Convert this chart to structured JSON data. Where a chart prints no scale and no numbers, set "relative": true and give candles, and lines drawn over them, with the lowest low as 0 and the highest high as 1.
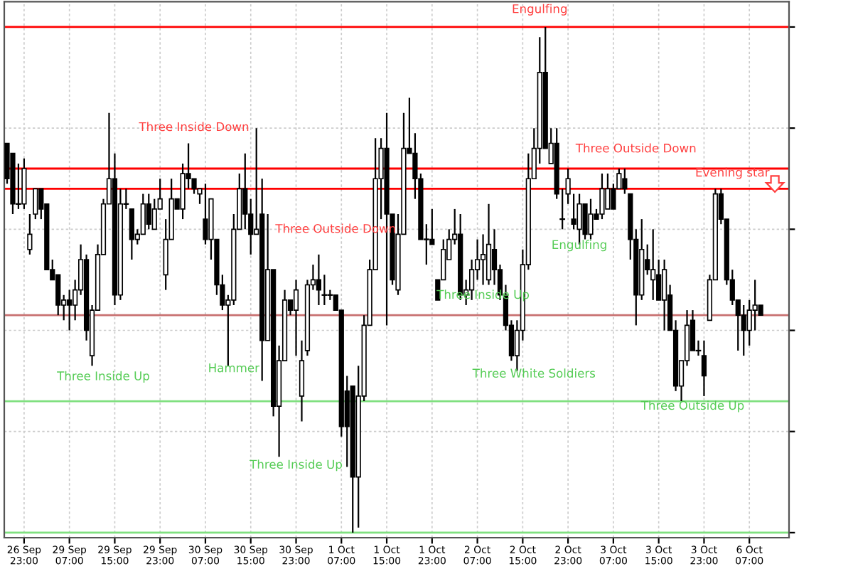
{
  "chart_data": {
    "type": "candlestick",
    "relative": true,
    "tick_labels": "x",
    "grid": true,
    "categories": [
      null,
      null,
      null,
      "26 Sep 23:00",
      null,
      null,
      null,
      null,
      null,
      null,
      null,
      "29 Sep 07:00",
      null,
      null,
      null,
      null,
      null,
      null,
      null,
      "29 Sep 15:00",
      null,
      null,
      null,
      null,
      null,
      null,
      null,
      "29 Sep 23:00",
      null,
      null,
      null,
      null,
      null,
      null,
      null,
      "30 Sep 07:00",
      null,
      null,
      null,
      null,
      null,
      null,
      null,
      "30 Sep 15:00",
      null,
      null,
      null,
      null,
      null,
      null,
      null,
      "30 Sep 23:00",
      null,
      null,
      null,
      null,
      null,
      null,
      null,
      "1 Oct 07:00",
      null,
      null,
      null,
      null,
      null,
      null,
      null,
      "1 Oct 15:00",
      null,
      null,
      null,
      null,
      null,
      null,
      null,
      "1 Oct 23:00",
      null,
      null,
      null,
      null,
      null,
      null,
      null,
      "2 Oct 07:00",
      null,
      null,
      null,
      null,
      null,
      null,
      null,
      "2 Oct 15:00",
      null,
      null,
      null,
      null,
      null,
      null,
      null,
      "2 Oct 23:00",
      null,
      null,
      null,
      null,
      null,
      null,
      null,
      "3 Oct 07:00",
      null,
      null,
      null,
      null,
      null,
      null,
      null,
      "3 Oct 15:00",
      null,
      null,
      null,
      null,
      null,
      null,
      null,
      "3 Oct 23:00",
      null,
      null,
      null,
      null,
      null,
      null,
      null,
      "6 Oct 07:00",
      null,
      null
    ],
    "ohlc": [
      [
        0.77,
        0.77,
        0.69,
        0.7
      ],
      [
        0.75,
        0.75,
        0.63,
        0.65
      ],
      [
        0.65,
        0.73,
        0.64,
        0.65
      ],
      [
        0.65,
        0.74,
        0.64,
        0.72
      ],
      [
        0.56,
        0.63,
        0.55,
        0.59
      ],
      [
        0.63,
        0.68,
        0.62,
        0.68
      ],
      [
        0.68,
        0.68,
        0.62,
        0.64
      ],
      [
        0.65,
        0.65,
        0.52,
        0.52
      ],
      [
        0.52,
        0.54,
        0.5,
        0.5
      ],
      [
        0.51,
        0.51,
        0.43,
        0.45
      ],
      [
        0.45,
        0.47,
        0.42,
        0.46
      ],
      [
        0.46,
        0.48,
        0.4,
        0.45
      ],
      [
        0.45,
        0.5,
        0.42,
        0.48
      ],
      [
        0.48,
        0.57,
        0.47,
        0.54
      ],
      [
        0.54,
        0.55,
        0.38,
        0.4
      ],
      [
        0.35,
        0.45,
        0.33,
        0.44
      ],
      [
        0.44,
        0.57,
        0.44,
        0.55
      ],
      [
        0.55,
        0.66,
        0.55,
        0.65
      ],
      [
        0.65,
        0.83,
        0.65,
        0.7
      ],
      [
        0.7,
        0.75,
        0.45,
        0.47
      ],
      [
        0.47,
        0.68,
        0.46,
        0.65
      ],
      [
        0.65,
        0.68,
        0.64,
        0.65
      ],
      [
        0.64,
        0.64,
        0.54,
        0.58
      ],
      [
        0.58,
        0.6,
        0.57,
        0.59
      ],
      [
        0.59,
        0.67,
        0.59,
        0.65
      ],
      [
        0.65,
        0.67,
        0.6,
        0.61
      ],
      [
        0.6,
        0.66,
        0.6,
        0.64
      ],
      [
        0.64,
        0.7,
        0.64,
        0.66
      ],
      [
        0.51,
        0.62,
        0.48,
        0.58
      ],
      [
        0.58,
        0.7,
        0.58,
        0.66
      ],
      [
        0.66,
        0.66,
        0.64,
        0.64
      ],
      [
        0.64,
        0.73,
        0.62,
        0.71
      ],
      [
        0.71,
        0.77,
        0.68,
        0.7
      ],
      [
        0.7,
        0.7,
        0.67,
        0.68
      ],
      [
        0.67,
        0.68,
        0.65,
        0.68
      ],
      [
        0.62,
        0.69,
        0.57,
        0.58
      ],
      [
        0.58,
        0.66,
        0.54,
        0.66
      ],
      [
        0.58,
        0.58,
        0.47,
        0.49
      ],
      [
        0.49,
        0.51,
        0.44,
        0.45
      ],
      [
        0.45,
        0.47,
        0.33,
        0.46
      ],
      [
        0.46,
        0.63,
        0.45,
        0.6
      ],
      [
        0.6,
        0.71,
        0.6,
        0.68
      ],
      [
        0.68,
        0.75,
        0.6,
        0.63
      ],
      [
        0.63,
        0.66,
        0.55,
        0.59
      ],
      [
        0.59,
        0.8,
        0.59,
        0.6
      ],
      [
        0.63,
        0.7,
        0.3,
        0.38
      ],
      [
        0.38,
        0.63,
        0.38,
        0.52
      ],
      [
        0.52,
        0.52,
        0.23,
        0.25
      ],
      [
        0.25,
        0.37,
        0.15,
        0.34
      ],
      [
        0.34,
        0.48,
        0.34,
        0.46
      ],
      [
        0.46,
        0.46,
        0.43,
        0.44
      ],
      [
        0.44,
        0.5,
        0.35,
        0.48
      ],
      [
        0.27,
        0.38,
        0.22,
        0.34
      ],
      [
        0.36,
        0.5,
        0.35,
        0.49
      ],
      [
        0.49,
        0.53,
        0.48,
        0.5
      ],
      [
        0.5,
        0.55,
        0.45,
        0.48
      ],
      [
        0.47,
        0.51,
        0.45,
        0.47
      ],
      [
        0.47,
        0.48,
        0.46,
        0.47
      ],
      [
        0.47,
        0.47,
        0.44,
        0.44
      ],
      [
        0.44,
        0.44,
        0.19,
        0.21
      ],
      [
        0.28,
        0.31,
        0.13,
        0.21
      ],
      [
        0.29,
        0.29,
        0,
        0.11
      ],
      [
        0.11,
        0.33,
        0.01,
        0.27
      ],
      [
        0.27,
        0.43,
        0.26,
        0.41
      ],
      [
        0.41,
        0.54,
        0.41,
        0.52
      ],
      [
        0.52,
        0.78,
        0.52,
        0.7
      ],
      [
        0.7,
        0.78,
        0.62,
        0.76
      ],
      [
        0.76,
        0.83,
        0.41,
        0.63
      ],
      [
        0.63,
        0.63,
        0.49,
        0.5
      ],
      [
        0.48,
        0.63,
        0.47,
        0.59
      ],
      [
        0.59,
        0.83,
        0.59,
        0.76
      ],
      [
        0.76,
        0.86,
        0.75,
        0.75
      ],
      [
        0.75,
        0.79,
        0.66,
        0.7
      ],
      [
        0.7,
        0.71,
        0.58,
        0.58
      ],
      [
        0.58,
        0.61,
        0.53,
        0.58
      ],
      [
        0.58,
        0.64,
        0.57,
        0.57
      ],
      [
        0.5,
        0.5,
        0.46,
        0.46
      ],
      [
        0.5,
        0.58,
        0.5,
        0.56
      ],
      [
        0.54,
        0.6,
        0.54,
        0.58
      ],
      [
        0.58,
        0.64,
        0.57,
        0.59
      ],
      [
        0.59,
        0.63,
        0.46,
        0.47
      ],
      [
        0.47,
        0.5,
        0.45,
        0.48
      ],
      [
        0.48,
        0.54,
        0.46,
        0.52
      ],
      [
        0.52,
        0.58,
        0.5,
        0.54
      ],
      [
        0.54,
        0.59,
        0.49,
        0.55
      ],
      [
        0.5,
        0.65,
        0.49,
        0.57
      ],
      [
        0.56,
        0.6,
        0.49,
        0.52
      ],
      [
        0.52,
        0.53,
        0.46,
        0.47
      ],
      [
        0.47,
        0.49,
        0.4,
        0.41
      ],
      [
        0.41,
        0.42,
        0.34,
        0.35
      ],
      [
        0.35,
        0.42,
        0.32,
        0.4
      ],
      [
        0.4,
        0.56,
        0.38,
        0.53
      ],
      [
        0.53,
        0.75,
        0.52,
        0.7
      ],
      [
        0.7,
        0.8,
        0.7,
        0.76
      ],
      [
        0.76,
        0.98,
        0.73,
        0.91
      ],
      [
        0.91,
        1,
        0.76,
        0.76
      ],
      [
        0.73,
        0.8,
        0.73,
        0.77
      ],
      [
        0.77,
        0.8,
        0.66,
        0.67
      ],
      [
        0.62,
        0.68,
        0.6,
        0.62
      ],
      [
        0.67,
        0.72,
        0.65,
        0.7
      ],
      [
        0.62,
        0.67,
        0.6,
        0.61
      ],
      [
        0.6,
        0.67,
        0.57,
        0.65
      ],
      [
        0.65,
        0.65,
        0.58,
        0.59
      ],
      [
        0.59,
        0.66,
        0.58,
        0.63
      ],
      [
        0.63,
        0.64,
        0.62,
        0.62
      ],
      [
        0.63,
        0.71,
        0.62,
        0.68
      ],
      [
        0.64,
        0.71,
        0.64,
        0.68
      ],
      [
        0.68,
        0.69,
        0.64,
        0.64
      ],
      [
        0.68,
        0.72,
        0.68,
        0.71
      ],
      [
        0.7,
        0.72,
        0.67,
        0.68
      ],
      [
        0.67,
        0.67,
        0.54,
        0.58
      ],
      [
        0.58,
        0.6,
        0.41,
        0.47
      ],
      [
        0.47,
        0.62,
        0.46,
        0.56
      ],
      [
        0.54,
        0.57,
        0.51,
        0.52
      ],
      [
        0.5,
        0.6,
        0.46,
        0.52
      ],
      [
        0.51,
        0.54,
        0.46,
        0.46
      ],
      [
        0.46,
        0.54,
        0.4,
        0.52
      ],
      [
        0.47,
        0.49,
        0.4,
        0.4
      ],
      [
        0.4,
        0.42,
        0.28,
        0.29
      ],
      [
        0.29,
        0.34,
        0.26,
        0.34
      ],
      [
        0.34,
        0.44,
        0.33,
        0.41
      ],
      [
        0.42,
        0.44,
        0.36,
        0.36
      ],
      [
        0.36,
        0.38,
        0.35,
        0.36
      ],
      [
        0.35,
        0.38,
        0.27,
        0.31
      ],
      [
        0.42,
        0.51,
        0.42,
        0.5
      ],
      [
        0.5,
        0.68,
        0.5,
        0.67
      ],
      [
        0.67,
        0.68,
        0.61,
        0.62
      ],
      [
        0.62,
        0.62,
        0.49,
        0.5
      ],
      [
        0.5,
        0.52,
        0.45,
        0.46
      ],
      [
        0.46,
        0.46,
        0.36,
        0.43
      ],
      [
        0.43,
        0.45,
        0.35,
        0.4
      ],
      [
        0.4,
        0.46,
        0.37,
        0.44
      ],
      [
        0.44,
        0.5,
        0.4,
        0.45
      ],
      [
        0.45,
        0.45,
        0.43,
        0.43
      ]
    ],
    "ref_lines": [
      {
        "axis": "y",
        "value": 1,
        "color": "#ff0000"
      },
      {
        "axis": "y",
        "value": 0.72,
        "color": "#ff0000"
      },
      {
        "axis": "y",
        "value": 0.68,
        "color": "#ff0000"
      },
      {
        "axis": "y",
        "value": 0.43,
        "color": "#c87070"
      },
      {
        "axis": "y",
        "value": 0.26,
        "color": "#80e080"
      },
      {
        "axis": "y",
        "value": 0,
        "color": "#80e080"
      }
    ],
    "annotations": [
      "Three Inside Up",
      "Three Inside Down",
      "Hammer",
      "Three Inside Up",
      "Three Outside Down",
      "Three Inside Up",
      "Engulfing",
      "Three White Soldiers",
      "Engulfing",
      "Three Outside Down",
      "Three Outside Up",
      "Evening star"
    ]
  }
}
